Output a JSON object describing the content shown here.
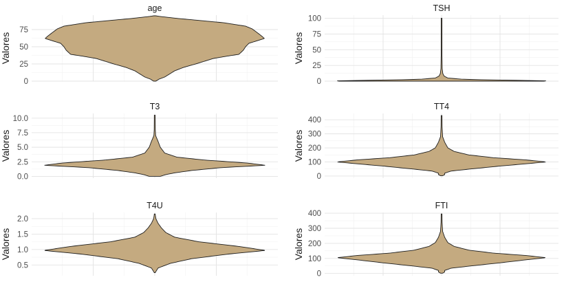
{
  "figure": {
    "ylabel": "Valores"
  },
  "chart_data": [
    {
      "type": "violin",
      "title": "age",
      "ylabel": "Valores",
      "ylim": [
        0,
        96
      ],
      "yticks": [
        0,
        25,
        50,
        75
      ],
      "fill": "#C4AA80",
      "outline": "#1c1c1c",
      "profile": [
        [
          0,
          0.01
        ],
        [
          3,
          0.04
        ],
        [
          6,
          0.09
        ],
        [
          10,
          0.13
        ],
        [
          15,
          0.18
        ],
        [
          20,
          0.26
        ],
        [
          25,
          0.37
        ],
        [
          30,
          0.47
        ],
        [
          33,
          0.53
        ],
        [
          36,
          0.64
        ],
        [
          39,
          0.76
        ],
        [
          45,
          0.8
        ],
        [
          50,
          0.82
        ],
        [
          55,
          0.85
        ],
        [
          59,
          0.93
        ],
        [
          62,
          0.99
        ],
        [
          65,
          0.97
        ],
        [
          70,
          0.93
        ],
        [
          76,
          0.88
        ],
        [
          80,
          0.82
        ],
        [
          85,
          0.62
        ],
        [
          88,
          0.42
        ],
        [
          91,
          0.22
        ],
        [
          94,
          0.05
        ],
        [
          95,
          0.01
        ]
      ]
    },
    {
      "type": "violin",
      "title": "TSH",
      "ylabel": "Valores",
      "ylim": [
        0,
        105
      ],
      "yticks": [
        0,
        25,
        50,
        75,
        100
      ],
      "fill": "#C4AA80",
      "outline": "#1c1c1c",
      "profile": [
        [
          0,
          0.98
        ],
        [
          0.5,
          1.0
        ],
        [
          1,
          0.85
        ],
        [
          2,
          0.45
        ],
        [
          3,
          0.2
        ],
        [
          5,
          0.06
        ],
        [
          8,
          0.025
        ],
        [
          12,
          0.012
        ],
        [
          20,
          0.006
        ],
        [
          40,
          0.004
        ],
        [
          60,
          0.003
        ],
        [
          80,
          0.003
        ],
        [
          100,
          0.003
        ]
      ]
    },
    {
      "type": "violin",
      "title": "T3",
      "ylabel": "Valores",
      "ylim": [
        -0.3,
        10.8
      ],
      "yticks": [
        0.0,
        2.5,
        5.0,
        7.5,
        10.0
      ],
      "fill": "#C4AA80",
      "outline": "#1c1c1c",
      "profile": [
        [
          0,
          0.05
        ],
        [
          0.3,
          0.1
        ],
        [
          0.6,
          0.18
        ],
        [
          1,
          0.33
        ],
        [
          1.5,
          0.6
        ],
        [
          1.9,
          1.0
        ],
        [
          2.3,
          0.83
        ],
        [
          2.8,
          0.45
        ],
        [
          3.3,
          0.2
        ],
        [
          4,
          0.09
        ],
        [
          5,
          0.05
        ],
        [
          6,
          0.03
        ],
        [
          7,
          0.008
        ],
        [
          8,
          0.005
        ],
        [
          10.5,
          0.004
        ]
      ]
    },
    {
      "type": "violin",
      "title": "TT4",
      "ylabel": "Valores",
      "ylim": [
        -15,
        445
      ],
      "yticks": [
        0,
        100,
        200,
        300,
        400
      ],
      "fill": "#C4AA80",
      "outline": "#1c1c1c",
      "profile": [
        [
          2,
          0.01
        ],
        [
          10,
          0.03
        ],
        [
          20,
          0.03
        ],
        [
          35,
          0.09
        ],
        [
          50,
          0.28
        ],
        [
          70,
          0.55
        ],
        [
          85,
          0.78
        ],
        [
          100,
          1.0
        ],
        [
          115,
          0.8
        ],
        [
          130,
          0.5
        ],
        [
          150,
          0.26
        ],
        [
          175,
          0.12
        ],
        [
          200,
          0.06
        ],
        [
          240,
          0.03
        ],
        [
          280,
          0.01
        ],
        [
          350,
          0.005
        ],
        [
          430,
          0.004
        ]
      ]
    },
    {
      "type": "violin",
      "title": "T4U",
      "ylabel": "Valores",
      "ylim": [
        0.15,
        2.2
      ],
      "yticks": [
        0.5,
        1.0,
        1.5,
        2.0
      ],
      "fill": "#C4AA80",
      "outline": "#1c1c1c",
      "profile": [
        [
          0.25,
          0.004
        ],
        [
          0.4,
          0.03
        ],
        [
          0.55,
          0.14
        ],
        [
          0.7,
          0.33
        ],
        [
          0.85,
          0.66
        ],
        [
          0.97,
          1.0
        ],
        [
          1.1,
          0.76
        ],
        [
          1.25,
          0.4
        ],
        [
          1.4,
          0.18
        ],
        [
          1.55,
          0.1
        ],
        [
          1.7,
          0.06
        ],
        [
          1.85,
          0.03
        ],
        [
          2.0,
          0.01
        ],
        [
          2.15,
          0.004
        ]
      ]
    },
    {
      "type": "violin",
      "title": "FTI",
      "ylabel": "Valores",
      "ylim": [
        -15,
        405
      ],
      "yticks": [
        0,
        100,
        200,
        300,
        400
      ],
      "fill": "#C4AA80",
      "outline": "#1c1c1c",
      "profile": [
        [
          2,
          0.01
        ],
        [
          10,
          0.03
        ],
        [
          20,
          0.03
        ],
        [
          35,
          0.09
        ],
        [
          50,
          0.28
        ],
        [
          70,
          0.55
        ],
        [
          90,
          0.8
        ],
        [
          105,
          1.0
        ],
        [
          120,
          0.8
        ],
        [
          135,
          0.5
        ],
        [
          155,
          0.26
        ],
        [
          180,
          0.12
        ],
        [
          205,
          0.06
        ],
        [
          240,
          0.03
        ],
        [
          280,
          0.01
        ],
        [
          340,
          0.005
        ],
        [
          395,
          0.004
        ]
      ]
    }
  ]
}
